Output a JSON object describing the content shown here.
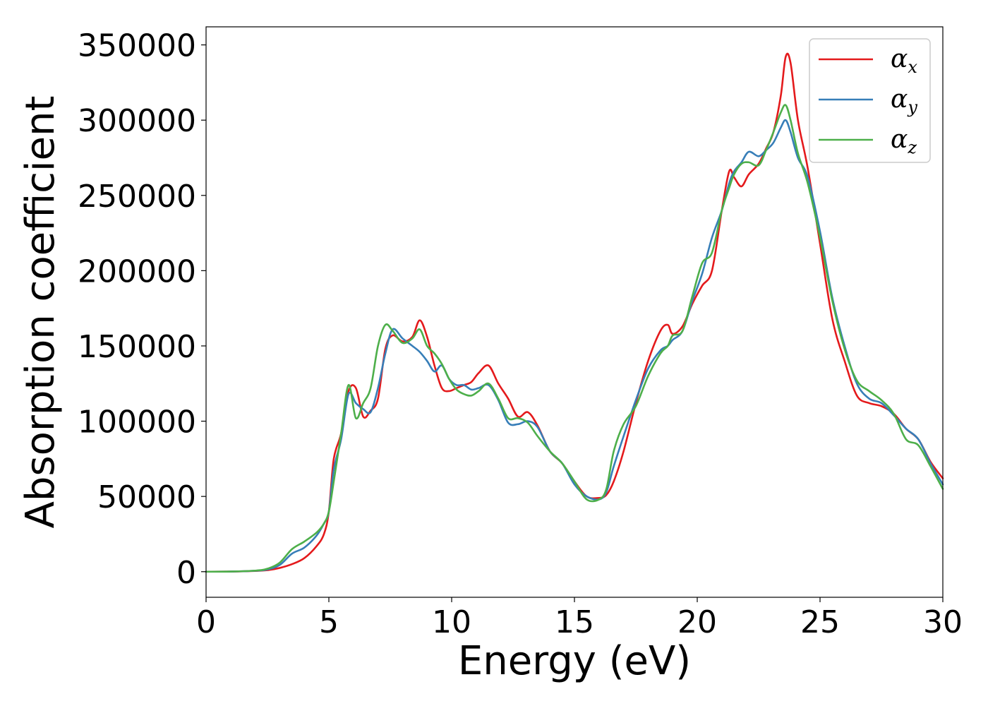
{
  "chart_data": {
    "type": "line",
    "title": "",
    "xlabel": "Energy (eV)",
    "ylabel": "Absorption coefficient",
    "xlim": [
      0,
      30
    ],
    "ylim": [
      -17000,
      362000
    ],
    "xticks": [
      0,
      5,
      10,
      15,
      20,
      25,
      30
    ],
    "yticks": [
      0,
      50000,
      100000,
      150000,
      200000,
      250000,
      300000,
      350000
    ],
    "xtick_labels": [
      "0",
      "5",
      "10",
      "15",
      "20",
      "25",
      "30"
    ],
    "ytick_labels": [
      "0",
      "50000",
      "100000",
      "150000",
      "200000",
      "250000",
      "300000",
      "350000"
    ],
    "grid": false,
    "legend_position": "top-right",
    "series": [
      {
        "name": "αx",
        "legend_symbol": "α",
        "legend_subscript": "x",
        "color": "#e41a1c",
        "x": [
          0,
          1,
          2,
          2.5,
          3,
          3.5,
          4,
          4.5,
          4.8,
          5,
          5.2,
          5.5,
          5.8,
          6.1,
          6.4,
          6.7,
          7,
          7.3,
          7.6,
          8,
          8.4,
          8.7,
          9,
          9.3,
          9.6,
          9.9,
          10.2,
          10.5,
          10.8,
          11.1,
          11.5,
          11.9,
          12.3,
          12.7,
          13.1,
          13.5,
          14,
          14.5,
          15,
          15.5,
          16,
          16.3,
          16.6,
          17,
          17.5,
          18,
          18.5,
          18.8,
          19,
          19.4,
          19.8,
          20.2,
          20.6,
          21,
          21.3,
          21.5,
          21.8,
          22.1,
          22.5,
          22.8,
          23.1,
          23.4,
          23.6,
          23.8,
          24.1,
          24.5,
          25,
          25.5,
          26,
          26.5,
          27,
          27.5,
          28,
          28.5,
          29,
          29.5,
          30
        ],
        "y": [
          0,
          100,
          500,
          1000,
          2500,
          5000,
          9000,
          17000,
          25000,
          40000,
          75000,
          92000,
          120000,
          122000,
          103000,
          107000,
          115000,
          148000,
          157000,
          153000,
          156000,
          167000,
          156000,
          137000,
          122000,
          120000,
          122000,
          124000,
          126000,
          132000,
          137000,
          125000,
          115000,
          103000,
          106000,
          97000,
          80000,
          72000,
          60000,
          50000,
          49000,
          51000,
          60000,
          80000,
          112000,
          140000,
          160000,
          164000,
          158000,
          163000,
          178000,
          190000,
          200000,
          240000,
          266000,
          262000,
          256000,
          264000,
          271000,
          281000,
          292000,
          316000,
          342000,
          338000,
          300000,
          268000,
          218000,
          168000,
          140000,
          117000,
          112000,
          110000,
          105000,
          95000,
          88000,
          73000,
          62000
        ]
      },
      {
        "name": "αy",
        "legend_symbol": "α",
        "legend_subscript": "y",
        "color": "#377eb8",
        "x": [
          0,
          1,
          2,
          2.5,
          3,
          3.5,
          4,
          4.5,
          4.8,
          5,
          5.2,
          5.5,
          5.8,
          6.1,
          6.4,
          6.7,
          7,
          7.3,
          7.6,
          8,
          8.4,
          8.7,
          9,
          9.3,
          9.6,
          9.9,
          10.2,
          10.5,
          10.8,
          11.1,
          11.5,
          11.9,
          12.3,
          12.7,
          13.1,
          13.5,
          14,
          14.5,
          15,
          15.5,
          16,
          16.3,
          16.6,
          17,
          17.5,
          18,
          18.5,
          18.8,
          19,
          19.4,
          19.8,
          20.2,
          20.6,
          21,
          21.3,
          21.5,
          21.8,
          22.1,
          22.5,
          22.8,
          23.1,
          23.4,
          23.6,
          23.8,
          24.1,
          24.5,
          25,
          25.5,
          26,
          26.5,
          27,
          27.5,
          28,
          28.5,
          29,
          29.5,
          30
        ],
        "y": [
          0,
          100,
          600,
          1500,
          4500,
          12000,
          16000,
          24000,
          32000,
          40000,
          68000,
          88000,
          118000,
          112000,
          108000,
          106000,
          122000,
          145000,
          161000,
          155000,
          150000,
          146000,
          140000,
          133000,
          137000,
          128000,
          124000,
          124000,
          121000,
          122000,
          124000,
          114000,
          99000,
          98000,
          100000,
          96000,
          80000,
          72000,
          58000,
          50000,
          48000,
          53000,
          70000,
          90000,
          114000,
          135000,
          147000,
          150000,
          154000,
          160000,
          180000,
          198000,
          222000,
          240000,
          258000,
          266000,
          272000,
          279000,
          276000,
          280000,
          285000,
          295000,
          300000,
          292000,
          275000,
          262000,
          226000,
          182000,
          150000,
          125000,
          115000,
          112000,
          104000,
          95000,
          88000,
          72000,
          58000
        ]
      },
      {
        "name": "αz",
        "legend_symbol": "α",
        "legend_subscript": "z",
        "color": "#4daf4a",
        "x": [
          0,
          1,
          2,
          2.5,
          3,
          3.5,
          4,
          4.5,
          4.8,
          5,
          5.2,
          5.5,
          5.8,
          6.1,
          6.4,
          6.7,
          7,
          7.3,
          7.6,
          8,
          8.4,
          8.7,
          9,
          9.3,
          9.6,
          9.9,
          10.2,
          10.5,
          10.8,
          11.1,
          11.5,
          11.9,
          12.3,
          12.7,
          13.1,
          13.5,
          14,
          14.5,
          15,
          15.5,
          16,
          16.3,
          16.6,
          17,
          17.5,
          18,
          18.5,
          18.8,
          19,
          19.4,
          19.8,
          20.2,
          20.6,
          21,
          21.3,
          21.5,
          21.8,
          22.1,
          22.5,
          22.8,
          23.1,
          23.4,
          23.6,
          23.8,
          24.1,
          24.5,
          25,
          25.5,
          26,
          26.5,
          27,
          27.5,
          28,
          28.5,
          29,
          29.5,
          30
        ],
        "y": [
          0,
          100,
          700,
          2000,
          6000,
          15000,
          20000,
          26000,
          32000,
          40000,
          60000,
          92000,
          124000,
          102000,
          112000,
          122000,
          150000,
          164000,
          160000,
          152000,
          155000,
          161000,
          150000,
          145000,
          138000,
          128000,
          121000,
          118000,
          117000,
          120000,
          125000,
          115000,
          102000,
          102000,
          99000,
          90000,
          80000,
          72000,
          60000,
          48000,
          48000,
          55000,
          80000,
          98000,
          110000,
          130000,
          145000,
          150000,
          157000,
          160000,
          183000,
          205000,
          212000,
          240000,
          255000,
          264000,
          271000,
          272000,
          270000,
          280000,
          292000,
          305000,
          310000,
          300000,
          278000,
          258000,
          222000,
          180000,
          148000,
          127000,
          120000,
          114000,
          105000,
          88000,
          84000,
          70000,
          55000
        ]
      }
    ]
  }
}
